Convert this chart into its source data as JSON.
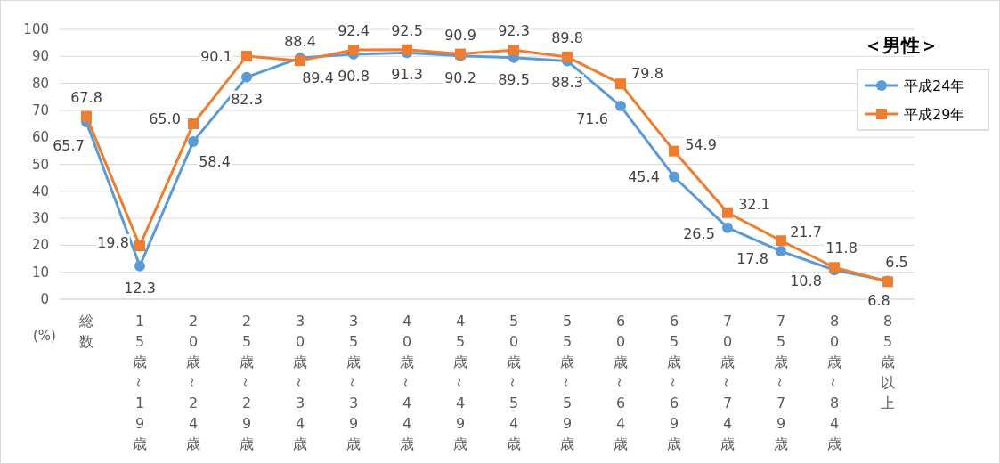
{
  "chart_data": {
    "type": "line",
    "title": "＜男性＞",
    "ylabel": "(%)",
    "categories": [
      "総数",
      "15歳～19歳",
      "20歳～24歳",
      "25歳～29歳",
      "30歳～34歳",
      "35歳～39歳",
      "40歳～44歳",
      "45歳～49歳",
      "50歳～54歳",
      "55歳～59歳",
      "60歳～64歳",
      "65歳～69歳",
      "70歳～74歳",
      "75歳～79歳",
      "80歳～84歳",
      "85歳以上"
    ],
    "series": [
      {
        "name": "平成24年",
        "color": "#5b9bd5",
        "marker": "circle",
        "values": [
          65.7,
          12.3,
          58.4,
          82.3,
          89.4,
          90.8,
          91.3,
          90.2,
          89.5,
          88.3,
          71.6,
          45.4,
          26.5,
          17.8,
          10.8,
          6.8
        ],
        "value_labels": [
          "65.7",
          "12.3",
          "58.4",
          "82.3",
          "89.4",
          "90.8",
          "91.3",
          "90.2",
          "89.5",
          "88.3",
          "71.6",
          "45.4",
          "26.5",
          "17.8",
          "10.8",
          "6.8"
        ]
      },
      {
        "name": "平成29年",
        "color": "#ed7d31",
        "marker": "square",
        "values": [
          67.8,
          19.8,
          65.0,
          90.1,
          88.4,
          92.4,
          92.5,
          90.9,
          92.3,
          89.8,
          79.8,
          54.9,
          32.1,
          21.7,
          11.8,
          6.5
        ],
        "value_labels": [
          "67.8",
          "19.8",
          "65.0",
          "90.1",
          "88.4",
          "92.4",
          "92.5",
          "90.9",
          "92.3",
          "89.8",
          "79.8",
          "54.9",
          "32.1",
          "21.7",
          "11.8",
          "6.5"
        ]
      }
    ],
    "ylim": [
      0,
      100
    ],
    "yticks": [
      0,
      10,
      20,
      30,
      40,
      50,
      60,
      70,
      80,
      90,
      100
    ],
    "grid": "y",
    "legend": "top right",
    "line_style": "solid"
  }
}
